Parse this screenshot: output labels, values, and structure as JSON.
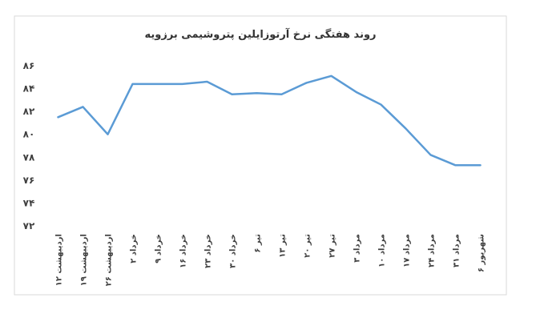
{
  "chart_data": {
    "type": "line",
    "title": "روند هفتگی نرخ آرتوزایلین پتروشیمی برزویه",
    "categories": [
      "۱۲ اردیبهشت",
      "۱۹ اردیبهشت",
      "۲۶ اردیبهشت",
      "۲ خرداد",
      "۹ خرداد",
      "۱۶ خرداد",
      "۲۳ خرداد",
      "۳۰ خرداد",
      "۶ تیر",
      "۱۳ تیر",
      "۲۰ تیر",
      "۲۷ تیر",
      "۳ مرداد",
      "۱۰ مرداد",
      "۱۷ مرداد",
      "۲۴ مرداد",
      "۳۱ مرداد",
      "۶ شهریور"
    ],
    "series": [
      {
        "color": "#5b9bd5",
        "values": [
          81.5,
          82.4,
          80.0,
          84.4,
          84.4,
          84.4,
          84.6,
          83.5,
          83.6,
          83.5,
          84.5,
          85.1,
          83.7,
          82.6,
          80.5,
          78.2,
          77.3,
          77.3
        ]
      }
    ],
    "ylim": [
      72,
      86
    ],
    "yticks": [
      {
        "value": 72,
        "label": "۷۲"
      },
      {
        "value": 74,
        "label": "۷۴"
      },
      {
        "value": 76,
        "label": "۷۶"
      },
      {
        "value": 78,
        "label": "۷۸"
      },
      {
        "value": 80,
        "label": "۸۰"
      },
      {
        "value": 82,
        "label": "۸۲"
      },
      {
        "value": 84,
        "label": "۸۴"
      },
      {
        "value": 86,
        "label": "۸۶"
      }
    ],
    "grid": false
  }
}
